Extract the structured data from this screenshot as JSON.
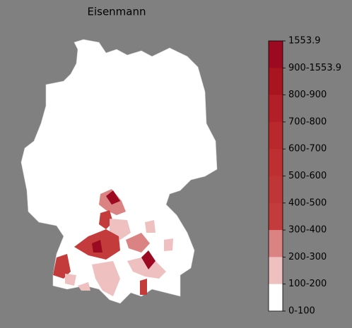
{
  "title": "Eisenmann",
  "colorbar": {
    "ticks": [
      1553.9,
      "900-1553.9",
      "800-900",
      "700-800",
      "600-700",
      "500-600",
      "400-500",
      "300-400",
      "200-300",
      "100-200",
      "0-100"
    ],
    "colors": [
      "#9c0a22",
      "#a9151f",
      "#b31f26",
      "#b9292c",
      "#bd2f30",
      "#c03535",
      "#c43b3b",
      "#db8282",
      "#eec0c0",
      "#ffffff"
    ]
  }
}
